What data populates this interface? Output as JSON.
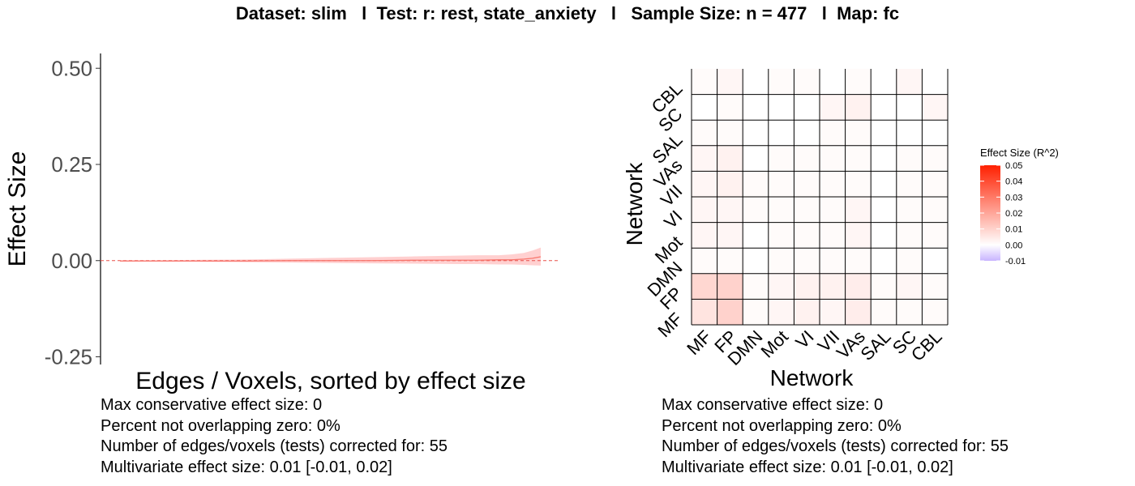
{
  "title": "Dataset: slim   l  Test: r: rest, state_anxiety   l   Sample Size: n = 477   l  Map: fc",
  "left_stats": [
    "Max conservative effect size: 0",
    "Percent not overlapping zero: 0%",
    "Number of edges/voxels (tests) corrected for: 55",
    "Multivariate effect size: 0.01 [-0.01, 0.02]"
  ],
  "right_stats": [
    "Max conservative effect size: 0",
    "Percent not overlapping zero: 0%",
    "Number of edges/voxels (tests) corrected for: 55",
    "Multivariate effect size: 0.01 [-0.01, 0.02]"
  ],
  "chart_data": [
    {
      "type": "area",
      "title": "",
      "xlabel": "Edges / Voxels, sorted by effect size",
      "ylabel": "Effect Size",
      "ylim": [
        -0.27,
        0.53
      ],
      "yticks": [
        "0.50",
        "0.25",
        "0.00",
        "-0.25"
      ],
      "ytick_values": [
        0.5,
        0.25,
        0.0,
        -0.25
      ],
      "reference_line": 0,
      "line_color": "#f8766d",
      "band_color": "#ffc8c8",
      "series": [
        {
          "x": [
            0,
            0.1,
            0.2,
            0.3,
            0.4,
            0.5,
            0.6,
            0.7,
            0.8,
            0.85,
            0.9,
            0.93,
            0.96,
            0.98,
            1.0
          ],
          "estimate": [
            -0.001,
            -0.001,
            -0.001,
            -0.001,
            0.0,
            0.0,
            0.0,
            0.001,
            0.001,
            0.001,
            0.002,
            0.002,
            0.004,
            0.006,
            0.01
          ],
          "lower": [
            -0.002,
            -0.002,
            -0.003,
            -0.004,
            -0.005,
            -0.006,
            -0.007,
            -0.008,
            -0.009,
            -0.009,
            -0.01,
            -0.01,
            -0.011,
            -0.012,
            -0.013
          ],
          "upper": [
            0.001,
            0.001,
            0.002,
            0.003,
            0.005,
            0.007,
            0.009,
            0.011,
            0.013,
            0.014,
            0.014,
            0.016,
            0.02,
            0.026,
            0.034
          ]
        }
      ],
      "grid": false
    },
    {
      "type": "heatmap",
      "title": "",
      "xlabel": "Network",
      "ylabel": "Network",
      "categories": [
        "MF",
        "FP",
        "DMN",
        "Mot",
        "VI",
        "VII",
        "VAs",
        "SAL",
        "SC",
        "CBL"
      ],
      "legend_title": "Effect Size (R^2)",
      "legend_ticks": [
        "0.05",
        "0.04",
        "0.03",
        "0.02",
        "0.01",
        "0.00",
        "-0.01"
      ],
      "legend_tick_values": [
        0.05,
        0.04,
        0.03,
        0.02,
        0.01,
        0.0,
        -0.01
      ],
      "color_range": [
        -0.01,
        0.05
      ],
      "color_low": "#c8b4ff",
      "color_mid": "#ffffff",
      "color_high": "#ff2000",
      "legend_position": "right",
      "values": [
        [
          0.006,
          0.01,
          0.001,
          0.002,
          0.003,
          0.002,
          0.004,
          0.001,
          0.001,
          0.001
        ],
        [
          0.009,
          0.01,
          0.001,
          0.002,
          0.003,
          0.003,
          0.004,
          0.001,
          0.002,
          0.001
        ],
        [
          0.001,
          0.001,
          0.0,
          0.001,
          0.001,
          0.001,
          0.001,
          0.0,
          0.001,
          0.0
        ],
        [
          0.002,
          0.002,
          0.0,
          0.001,
          0.001,
          0.001,
          0.002,
          0.0,
          0.001,
          0.001
        ],
        [
          0.002,
          0.002,
          0.001,
          0.001,
          0.001,
          0.001,
          0.002,
          0.0,
          0.001,
          0.001
        ],
        [
          0.002,
          0.003,
          0.001,
          0.001,
          0.001,
          0.001,
          0.001,
          0.0,
          0.001,
          0.001
        ],
        [
          0.002,
          0.003,
          0.0,
          0.001,
          0.001,
          0.001,
          0.001,
          0.0,
          0.001,
          0.001
        ],
        [
          0.001,
          0.001,
          0.0,
          0.0,
          0.0,
          0.001,
          0.001,
          0.0,
          0.0,
          0.0
        ],
        [
          0.0,
          0.001,
          0.0,
          0.0,
          0.0,
          0.002,
          0.003,
          0.0,
          0.0,
          0.002
        ],
        [
          0.001,
          0.002,
          0.0,
          0.001,
          0.001,
          0.0,
          0.001,
          0.0,
          0.002,
          0.0
        ]
      ]
    }
  ]
}
